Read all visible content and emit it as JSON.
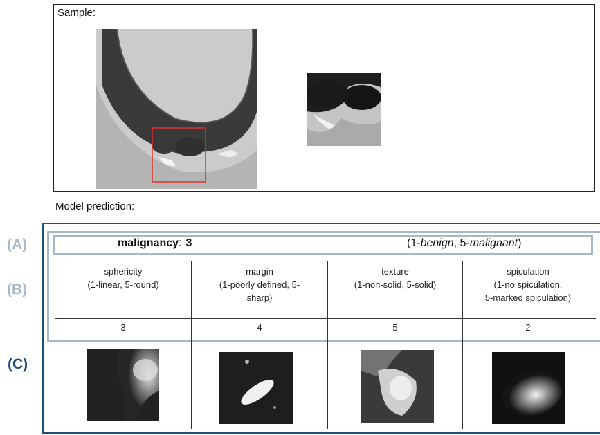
{
  "sample": {
    "label": "Sample:"
  },
  "prediction": {
    "label": "Model prediction:"
  },
  "panel_labels": {
    "a": "(A)",
    "b": "(B)",
    "c": "(C)"
  },
  "malignancy": {
    "name": "malignancy",
    "colon": ":",
    "value": "3",
    "range_open": "(1-",
    "range_low": "benign",
    "range_mid": ", 5-",
    "range_high": "malignant",
    "range_close": ")"
  },
  "features": [
    {
      "name": "sphericity",
      "desc1": "(1-linear, 5-round)",
      "desc2": "",
      "desc3": "",
      "score": "3"
    },
    {
      "name": "margin",
      "desc1": "(1-poorly defined, 5-",
      "desc2": "sharp)",
      "desc3": "",
      "score": "4"
    },
    {
      "name": "texture",
      "desc1": "(1-non-solid, 5-solid)",
      "desc2": "",
      "desc3": "",
      "score": "5"
    },
    {
      "name": "spiculation",
      "desc1": "(1-no spiculation,",
      "desc2": "5-marked spiculation)",
      "desc3": "",
      "score": "2"
    }
  ],
  "colors": {
    "panel_border": "#1f4e79",
    "inner_border": "#a7b8c9",
    "roi_box": "#e03030"
  }
}
